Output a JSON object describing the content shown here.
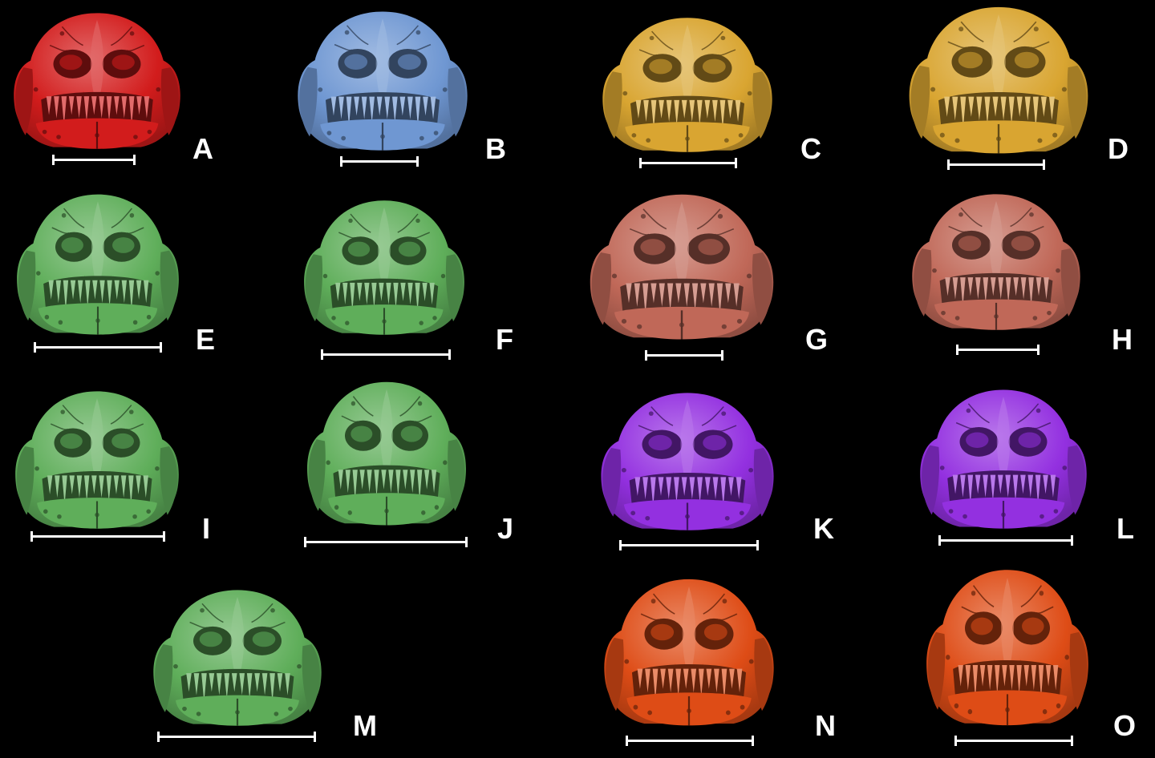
{
  "figure": {
    "background": "#000000",
    "panels": [
      {
        "id": "A",
        "label": "A",
        "color": "#d21c1c"
      },
      {
        "id": "B",
        "label": "B",
        "color": "#6f97d2"
      },
      {
        "id": "C",
        "label": "C",
        "color": "#d9a531"
      },
      {
        "id": "D",
        "label": "D",
        "color": "#d9a531"
      },
      {
        "id": "E",
        "label": "E",
        "color": "#5fae5a"
      },
      {
        "id": "F",
        "label": "F",
        "color": "#5fae5a"
      },
      {
        "id": "G",
        "label": "G",
        "color": "#c06858"
      },
      {
        "id": "H",
        "label": "H",
        "color": "#c06858"
      },
      {
        "id": "I",
        "label": "I",
        "color": "#5fae5a"
      },
      {
        "id": "J",
        "label": "J",
        "color": "#5fae5a"
      },
      {
        "id": "K",
        "label": "K",
        "color": "#9330e0"
      },
      {
        "id": "L",
        "label": "L",
        "color": "#9330e0"
      },
      {
        "id": "M",
        "label": "M",
        "color": "#5fae5a"
      },
      {
        "id": "N",
        "label": "N",
        "color": "#de4c16"
      },
      {
        "id": "O",
        "label": "O",
        "color": "#de4c16"
      }
    ]
  }
}
